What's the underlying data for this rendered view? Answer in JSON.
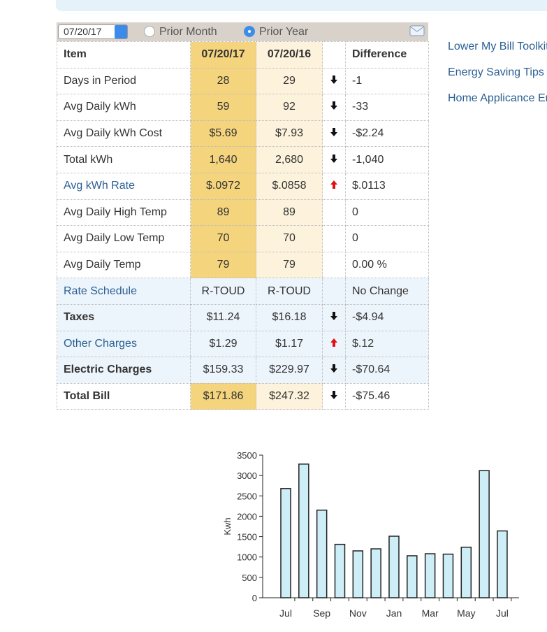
{
  "controls": {
    "date": "07/20/17",
    "options": [
      "Prior Month",
      "Prior Year"
    ],
    "selected": 1
  },
  "table": {
    "header": {
      "item": "Item",
      "current": "07/20/17",
      "prior": "07/20/16",
      "difference": "Difference"
    },
    "rows": [
      {
        "item": "Days in Period",
        "current": "28",
        "prior": "29",
        "trend": "down",
        "difference": "-1"
      },
      {
        "item": "Avg Daily kWh",
        "current": "59",
        "prior": "92",
        "trend": "down",
        "difference": "-33"
      },
      {
        "item": "Avg Daily kWh Cost",
        "current": "$5.69",
        "prior": "$7.93",
        "trend": "down",
        "difference": "-$2.24"
      },
      {
        "item": "Total kWh",
        "current": "1,640",
        "prior": "2,680",
        "trend": "down",
        "difference": "-1,040"
      },
      {
        "item": "Avg kWh Rate",
        "link": true,
        "current": "$.0972",
        "prior": "$.0858",
        "trend": "up",
        "difference": "$.0113"
      },
      {
        "item": "Avg Daily High Temp",
        "current": "89",
        "prior": "89",
        "difference": "0"
      },
      {
        "item": "Avg Daily Low Temp",
        "current": "70",
        "prior": "70",
        "difference": "0"
      },
      {
        "item": "Avg Daily Temp",
        "current": "79",
        "prior": "79",
        "difference": "0.00 %"
      },
      {
        "item": "Rate Schedule",
        "link": true,
        "shaded": true,
        "current": "R-TOUD",
        "prior": "R-TOUD",
        "difference": "No Change"
      },
      {
        "item": "Taxes",
        "bold": true,
        "shaded": true,
        "current": "$11.24",
        "prior": "$16.18",
        "trend": "down",
        "difference": "-$4.94"
      },
      {
        "item": "Other Charges",
        "link": true,
        "shaded": true,
        "current": "$1.29",
        "prior": "$1.17",
        "trend": "up",
        "difference": "$.12"
      },
      {
        "item": "Electric Charges",
        "bold": true,
        "shaded": true,
        "current": "$159.33",
        "prior": "$229.97",
        "trend": "down",
        "difference": "-$70.64"
      },
      {
        "item": "Total Bill",
        "bold": true,
        "current": "$171.86",
        "prior": "$247.32",
        "trend": "down",
        "difference": "-$75.46"
      }
    ]
  },
  "links": [
    "Lower My Bill Toolkit",
    "Energy Saving Tips",
    "Home Applicance En"
  ],
  "chart_data": {
    "type": "bar",
    "y_label": "Kwh",
    "categories": [
      "Jul",
      null,
      "Sep",
      null,
      "Nov",
      null,
      "Jan",
      null,
      "Mar",
      null,
      "May",
      null,
      "Jul"
    ],
    "values": [
      2680,
      3280,
      2150,
      1310,
      1150,
      1200,
      1510,
      1030,
      1080,
      1070,
      1240,
      3120,
      1640
    ],
    "color": "#cdeef7",
    "ylim": [
      0,
      3500
    ],
    "yticks": [
      0,
      500,
      1000,
      1500,
      2000,
      2500,
      3000,
      3500
    ]
  }
}
